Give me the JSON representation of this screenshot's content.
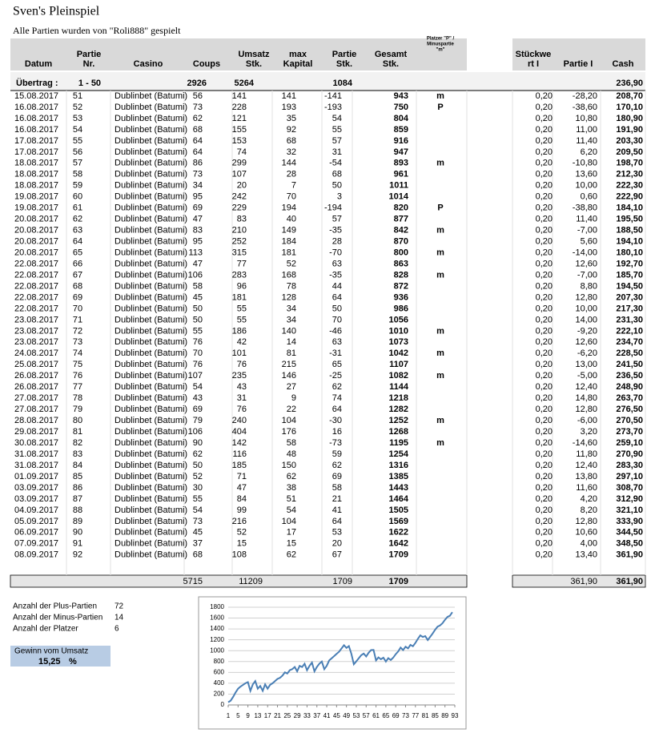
{
  "title": "Sven's Pleinspiel",
  "subtitle": "Alle Partien wurden von \"Roli888\" gespielt",
  "table": {
    "headers": [
      [
        "Datum"
      ],
      [
        "Partie",
        "Nr."
      ],
      [
        "Casino"
      ],
      [
        "Coups"
      ],
      [
        "Umsatz",
        "Stk."
      ],
      [
        "max",
        "Kapital"
      ],
      [
        "Partie",
        "Stk."
      ],
      [
        "Gesamt",
        "Stk."
      ],
      [
        "Platzer \"P\" /",
        "Minuspartie",
        "\"m\""
      ],
      [
        "Stückwe",
        "rt I"
      ],
      [
        "Partie I"
      ],
      [
        "Cash"
      ]
    ],
    "carry": {
      "label": "Übertrag :",
      "range": "1 - 50",
      "coups": "2926",
      "umsatz": "5264",
      "gesamt": "1084",
      "cash": "236,90"
    },
    "rows": [
      [
        "15.08.2017",
        "51",
        "Dublinbet (Batumi)",
        "56",
        "141",
        "141",
        "-141",
        "943",
        "m",
        "0,20",
        "-28,20",
        "208,70"
      ],
      [
        "16.08.2017",
        "52",
        "Dublinbet (Batumi)",
        "73",
        "228",
        "193",
        "-193",
        "750",
        "P",
        "0,20",
        "-38,60",
        "170,10"
      ],
      [
        "16.08.2017",
        "53",
        "Dublinbet (Batumi)",
        "62",
        "121",
        "35",
        "54",
        "804",
        null,
        "0,20",
        "10,80",
        "180,90"
      ],
      [
        "16.08.2017",
        "54",
        "Dublinbet (Batumi)",
        "68",
        "155",
        "92",
        "55",
        "859",
        null,
        "0,20",
        "11,00",
        "191,90"
      ],
      [
        "17.08.2017",
        "55",
        "Dublinbet (Batumi)",
        "64",
        "153",
        "68",
        "57",
        "916",
        null,
        "0,20",
        "11,40",
        "203,30"
      ],
      [
        "17.08.2017",
        "56",
        "Dublinbet (Batumi)",
        "64",
        "74",
        "32",
        "31",
        "947",
        null,
        "0,20",
        "6,20",
        "209,50"
      ],
      [
        "18.08.2017",
        "57",
        "Dublinbet (Batumi)",
        "86",
        "299",
        "144",
        "-54",
        "893",
        "m",
        "0,20",
        "-10,80",
        "198,70"
      ],
      [
        "18.08.2017",
        "58",
        "Dublinbet (Batumi)",
        "73",
        "107",
        "28",
        "68",
        "961",
        null,
        "0,20",
        "13,60",
        "212,30"
      ],
      [
        "18.08.2017",
        "59",
        "Dublinbet (Batumi)",
        "34",
        "20",
        "7",
        "50",
        "1011",
        null,
        "0,20",
        "10,00",
        "222,30"
      ],
      [
        "19.08.2017",
        "60",
        "Dublinbet (Batumi)",
        "95",
        "242",
        "70",
        "3",
        "1014",
        null,
        "0,20",
        "0,60",
        "222,90"
      ],
      [
        "19.08.2017",
        "61",
        "Dublinbet (Batumi)",
        "69",
        "229",
        "194",
        "-194",
        "820",
        "P",
        "0,20",
        "-38,80",
        "184,10"
      ],
      [
        "20.08.2017",
        "62",
        "Dublinbet (Batumi)",
        "47",
        "83",
        "40",
        "57",
        "877",
        null,
        "0,20",
        "11,40",
        "195,50"
      ],
      [
        "20.08.2017",
        "63",
        "Dublinbet (Batumi)",
        "83",
        "210",
        "149",
        "-35",
        "842",
        "m",
        "0,20",
        "-7,00",
        "188,50"
      ],
      [
        "20.08.2017",
        "64",
        "Dublinbet (Batumi)",
        "95",
        "252",
        "184",
        "28",
        "870",
        null,
        "0,20",
        "5,60",
        "194,10"
      ],
      [
        "20.08.2017",
        "65",
        "Dublinbet (Batumi)",
        "113",
        "315",
        "181",
        "-70",
        "800",
        "m",
        "0,20",
        "-14,00",
        "180,10"
      ],
      [
        "22.08.2017",
        "66",
        "Dublinbet (Batumi)",
        "47",
        "77",
        "52",
        "63",
        "863",
        null,
        "0,20",
        "12,60",
        "192,70"
      ],
      [
        "22.08.2017",
        "67",
        "Dublinbet (Batumi)",
        "106",
        "283",
        "168",
        "-35",
        "828",
        "m",
        "0,20",
        "-7,00",
        "185,70"
      ],
      [
        "22.08.2017",
        "68",
        "Dublinbet (Batumi)",
        "58",
        "96",
        "78",
        "44",
        "872",
        null,
        "0,20",
        "8,80",
        "194,50"
      ],
      [
        "22.08.2017",
        "69",
        "Dublinbet (Batumi)",
        "45",
        "181",
        "128",
        "64",
        "936",
        null,
        "0,20",
        "12,80",
        "207,30"
      ],
      [
        "22.08.2017",
        "70",
        "Dublinbet (Batumi)",
        "50",
        "55",
        "34",
        "50",
        "986",
        null,
        "0,20",
        "10,00",
        "217,30"
      ],
      [
        "23.08.2017",
        "71",
        "Dublinbet (Batumi)",
        "50",
        "55",
        "34",
        "70",
        "1056",
        null,
        "0,20",
        "14,00",
        "231,30"
      ],
      [
        "23.08.2017",
        "72",
        "Dublinbet (Batumi)",
        "55",
        "186",
        "140",
        "-46",
        "1010",
        "m",
        "0,20",
        "-9,20",
        "222,10"
      ],
      [
        "23.08.2017",
        "73",
        "Dublinbet (Batumi)",
        "76",
        "42",
        "14",
        "63",
        "1073",
        null,
        "0,20",
        "12,60",
        "234,70"
      ],
      [
        "24.08.2017",
        "74",
        "Dublinbet (Batumi)",
        "70",
        "101",
        "81",
        "-31",
        "1042",
        "m",
        "0,20",
        "-6,20",
        "228,50"
      ],
      [
        "25.08.2017",
        "75",
        "Dublinbet (Batumi)",
        "76",
        "76",
        "215",
        "65",
        "1107",
        null,
        "0,20",
        "13,00",
        "241,50"
      ],
      [
        "26.08.2017",
        "76",
        "Dublinbet (Batumi)",
        "107",
        "235",
        "146",
        "-25",
        "1082",
        "m",
        "0,20",
        "-5,00",
        "236,50"
      ],
      [
        "26.08.2017",
        "77",
        "Dublinbet (Batumi)",
        "54",
        "43",
        "27",
        "62",
        "1144",
        null,
        "0,20",
        "12,40",
        "248,90"
      ],
      [
        "27.08.2017",
        "78",
        "Dublinbet (Batumi)",
        "43",
        "31",
        "9",
        "74",
        "1218",
        null,
        "0,20",
        "14,80",
        "263,70"
      ],
      [
        "27.08.2017",
        "79",
        "Dublinbet (Batumi)",
        "69",
        "76",
        "22",
        "64",
        "1282",
        null,
        "0,20",
        "12,80",
        "276,50"
      ],
      [
        "28.08.2017",
        "80",
        "Dublinbet (Batumi)",
        "79",
        "240",
        "104",
        "-30",
        "1252",
        "m",
        "0,20",
        "-6,00",
        "270,50"
      ],
      [
        "29.08.2017",
        "81",
        "Dublinbet (Batumi)",
        "106",
        "404",
        "176",
        "16",
        "1268",
        null,
        "0,20",
        "3,20",
        "273,70"
      ],
      [
        "30.08.2017",
        "82",
        "Dublinbet (Batumi)",
        "90",
        "142",
        "58",
        "-73",
        "1195",
        "m",
        "0,20",
        "-14,60",
        "259,10"
      ],
      [
        "31.08.2017",
        "83",
        "Dublinbet (Batumi)",
        "62",
        "116",
        "48",
        "59",
        "1254",
        null,
        "0,20",
        "11,80",
        "270,90"
      ],
      [
        "31.08.2017",
        "84",
        "Dublinbet (Batumi)",
        "50",
        "185",
        "150",
        "62",
        "1316",
        null,
        "0,20",
        "12,40",
        "283,30"
      ],
      [
        "01.09.2017",
        "85",
        "Dublinbet (Batumi)",
        "52",
        "71",
        "62",
        "69",
        "1385",
        null,
        "0,20",
        "13,80",
        "297,10"
      ],
      [
        "03.09.2017",
        "86",
        "Dublinbet (Batumi)",
        "30",
        "47",
        "38",
        "58",
        "1443",
        null,
        "0,20",
        "11,60",
        "308,70"
      ],
      [
        "03.09.2017",
        "87",
        "Dublinbet (Batumi)",
        "55",
        "84",
        "51",
        "21",
        "1464",
        null,
        "0,20",
        "4,20",
        "312,90"
      ],
      [
        "04.09.2017",
        "88",
        "Dublinbet (Batumi)",
        "54",
        "99",
        "54",
        "41",
        "1505",
        null,
        "0,20",
        "8,20",
        "321,10"
      ],
      [
        "05.09.2017",
        "89",
        "Dublinbet (Batumi)",
        "73",
        "216",
        "104",
        "64",
        "1569",
        null,
        "0,20",
        "12,80",
        "333,90"
      ],
      [
        "06.09.2017",
        "90",
        "Dublinbet (Batumi)",
        "45",
        "52",
        "17",
        "53",
        "1622",
        null,
        "0,20",
        "10,60",
        "344,50"
      ],
      [
        "07.09.2017",
        "91",
        "Dublinbet (Batumi)",
        "37",
        "15",
        "15",
        "20",
        "1642",
        null,
        "0,20",
        "4,00",
        "348,50"
      ],
      [
        "08.09.2017",
        "92",
        "Dublinbet (Batumi)",
        "68",
        "108",
        "62",
        "67",
        "1709",
        null,
        "0,20",
        "13,40",
        "361,90"
      ]
    ],
    "totals": {
      "coups": "5715",
      "umsatz": "11209",
      "partie": "1709",
      "gesamt": "1709",
      "partie_i": "361,90",
      "cash": "361,90"
    }
  },
  "stats": [
    {
      "label": "Anzahl der Plus-Partien",
      "value": "72"
    },
    {
      "label": "Anzahl der Minus-Partien",
      "value": "14"
    },
    {
      "label": "Anzahl der Platzer",
      "value": "6"
    }
  ],
  "gain": {
    "label": "Gewinn vom Umsatz",
    "value": "15,25",
    "unit": "%"
  },
  "chart_data": {
    "type": "line",
    "color": "#4a7fb5",
    "grid": true,
    "x": [
      1,
      2,
      3,
      4,
      5,
      6,
      7,
      8,
      9,
      10,
      11,
      12,
      13,
      14,
      15,
      16,
      17,
      18,
      19,
      20,
      21,
      22,
      23,
      24,
      25,
      26,
      27,
      28,
      29,
      30,
      31,
      32,
      33,
      34,
      35,
      36,
      37,
      38,
      39,
      40,
      41,
      42,
      43,
      44,
      45,
      46,
      47,
      48,
      49,
      50,
      51,
      52,
      53,
      54,
      55,
      56,
      57,
      58,
      59,
      60,
      61,
      62,
      63,
      64,
      65,
      66,
      67,
      68,
      69,
      70,
      71,
      72,
      73,
      74,
      75,
      76,
      77,
      78,
      79,
      80,
      81,
      82,
      83,
      84,
      85,
      86,
      87,
      88,
      89,
      90,
      91,
      92
    ],
    "values": [
      50,
      80,
      150,
      230,
      300,
      340,
      370,
      400,
      420,
      260,
      380,
      440,
      300,
      350,
      260,
      380,
      300,
      370,
      400,
      440,
      480,
      500,
      540,
      600,
      580,
      640,
      660,
      700,
      620,
      720,
      700,
      760,
      640,
      720,
      780,
      620,
      700,
      760,
      800,
      660,
      720,
      820,
      860,
      900,
      940,
      980,
      1040,
      1100,
      1050,
      1084,
      943,
      750,
      804,
      859,
      916,
      947,
      893,
      961,
      1011,
      1014,
      820,
      877,
      842,
      870,
      800,
      863,
      828,
      872,
      936,
      986,
      1056,
      1010,
      1073,
      1042,
      1107,
      1082,
      1144,
      1218,
      1282,
      1252,
      1268,
      1195,
      1254,
      1316,
      1385,
      1443,
      1464,
      1505,
      1569,
      1622,
      1642,
      1709
    ],
    "xlim": [
      1,
      93
    ],
    "xticks": [
      1,
      5,
      9,
      13,
      17,
      21,
      25,
      29,
      33,
      37,
      41,
      45,
      49,
      53,
      57,
      61,
      65,
      69,
      73,
      77,
      81,
      85,
      89,
      93
    ],
    "ylim": [
      0,
      1800
    ],
    "yticks": [
      0,
      200,
      400,
      600,
      800,
      1000,
      1200,
      1400,
      1600,
      1800
    ]
  }
}
